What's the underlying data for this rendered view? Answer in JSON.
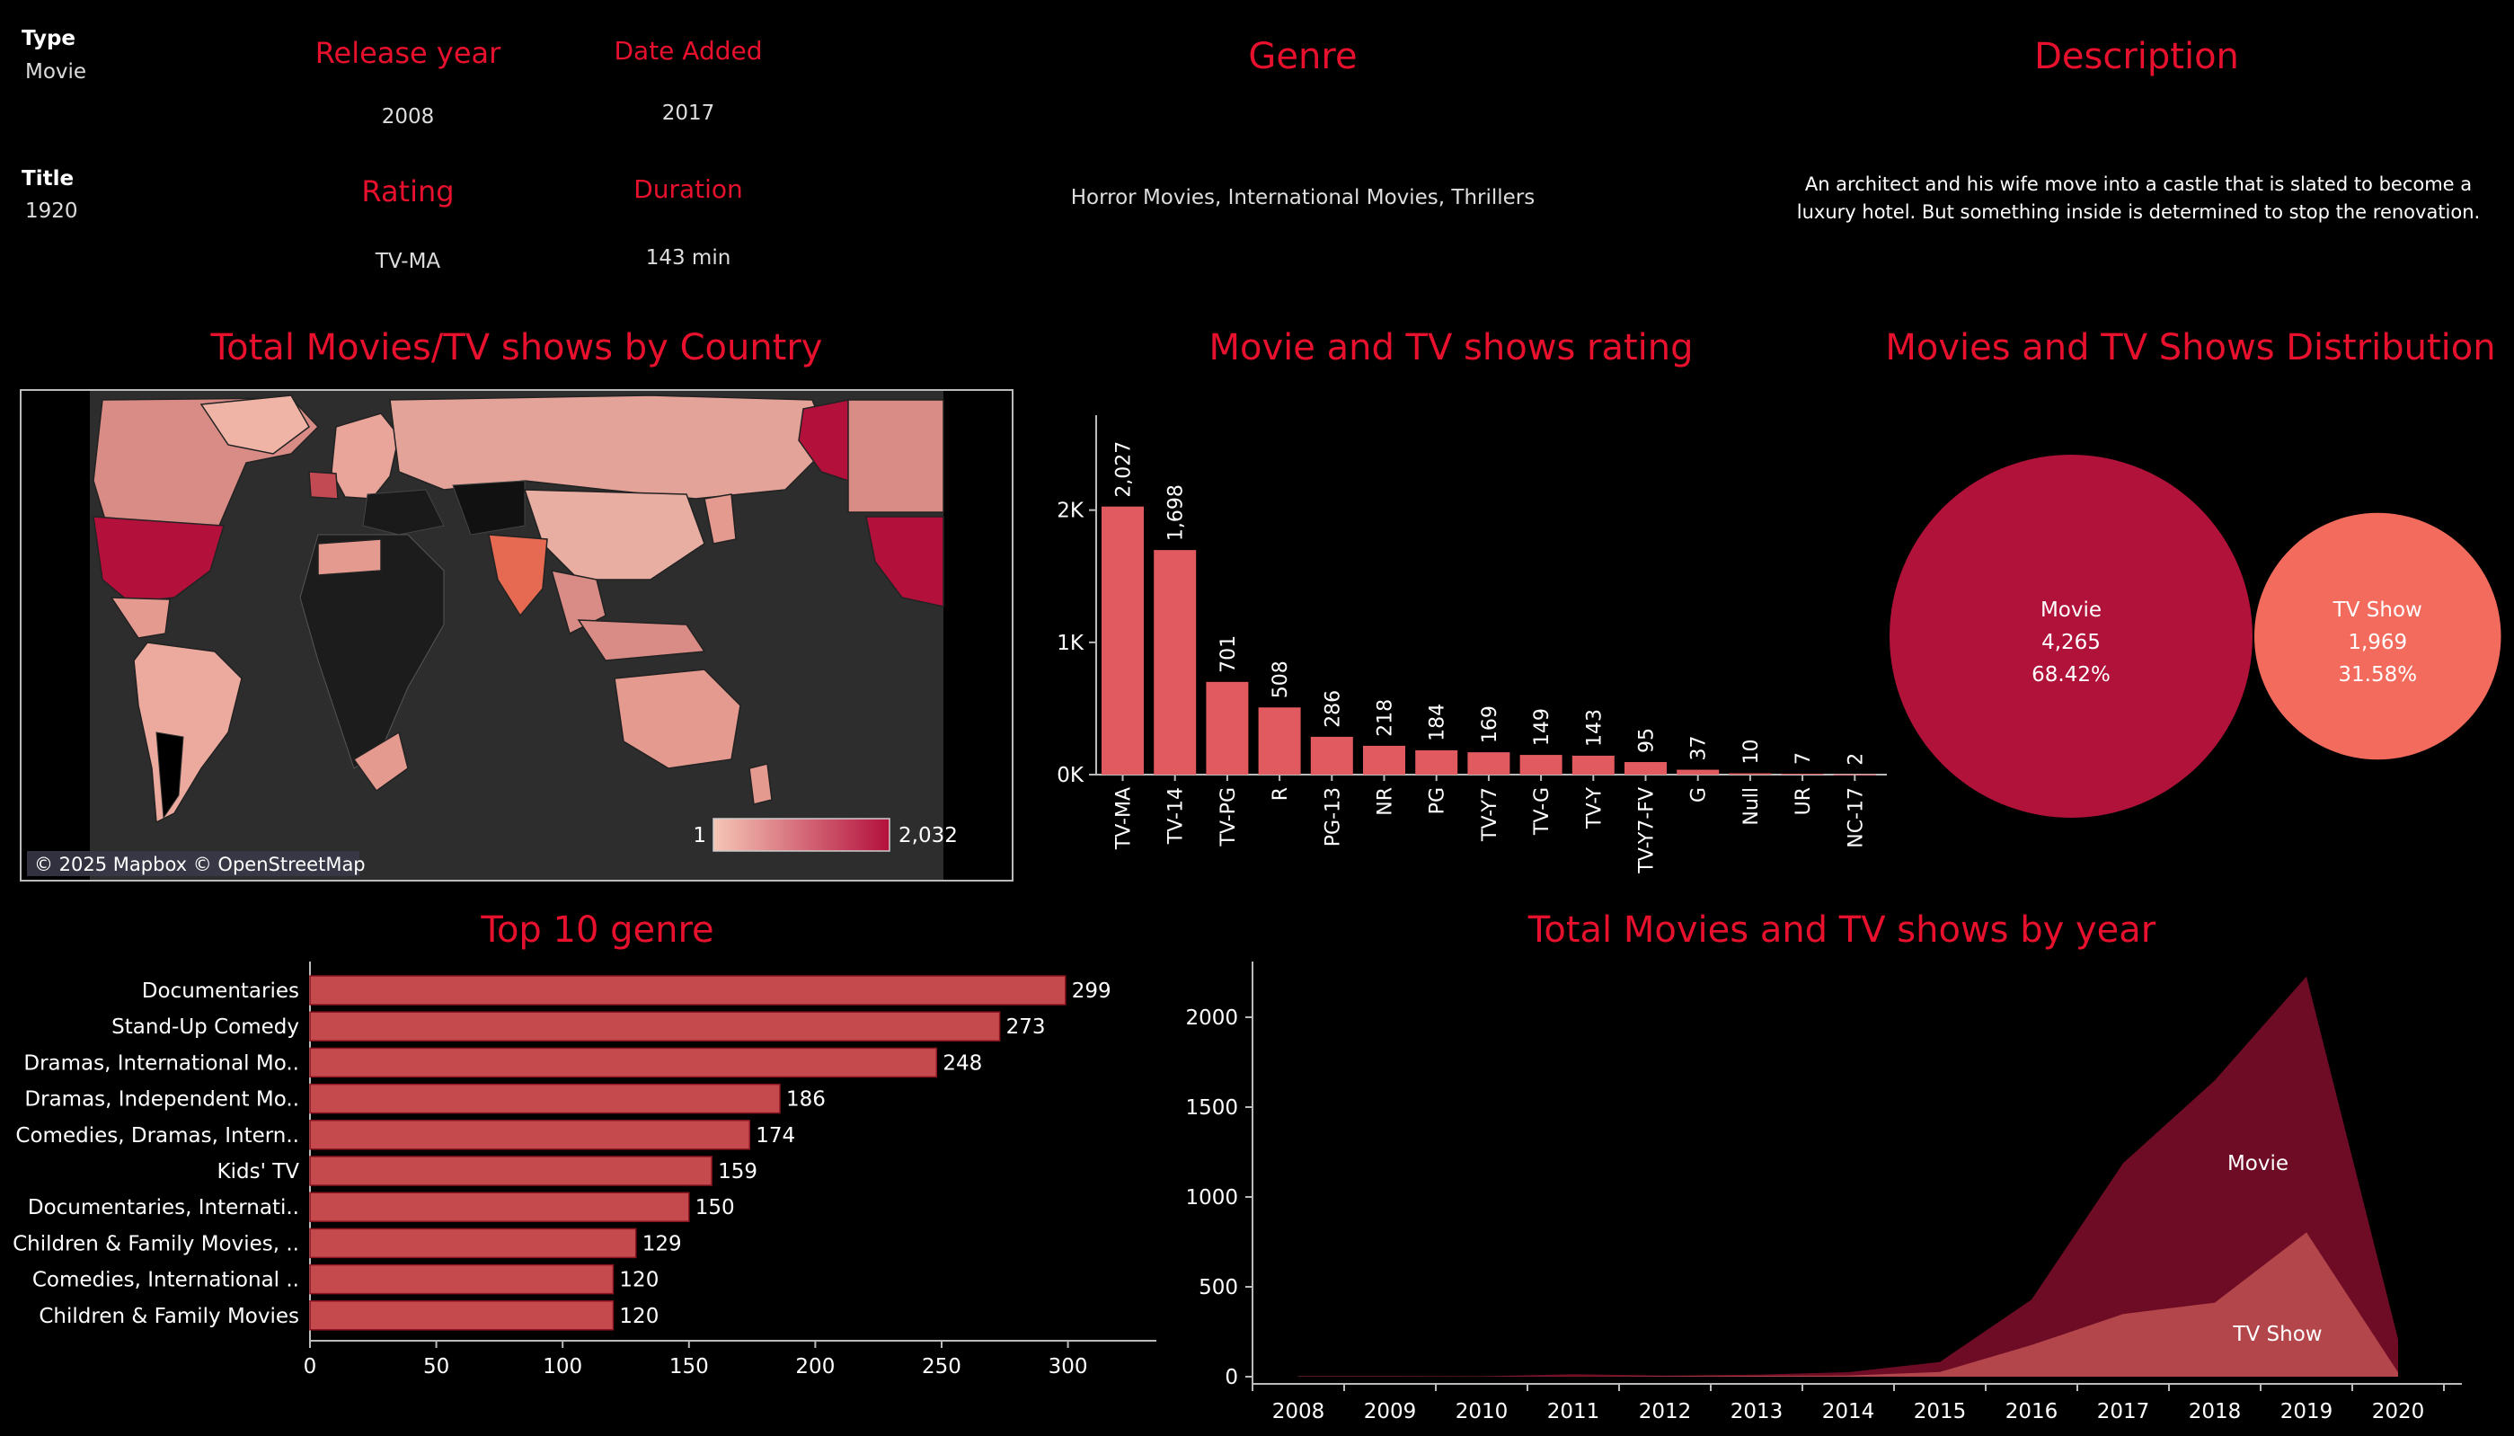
{
  "detail": {
    "type_label": "Type",
    "type_value": "Movie",
    "title_label": "Title",
    "title_value": "1920",
    "release_year_label": "Release year",
    "release_year_value": "2008",
    "date_added_label": "Date Added",
    "date_added_value": "2017",
    "rating_label": "Rating",
    "rating_value": "TV-MA",
    "duration_label": "Duration",
    "duration_value": "143 min",
    "genre_label": "Genre",
    "genre_value": "Horror Movies, International Movies, Thrillers",
    "description_label": "Description",
    "description_line1": "An architect and his wife move into a castle that is slated to become a",
    "description_line2": "luxury hotel. But something inside is determined to stop the renovation."
  },
  "map": {
    "title": "Total Movies/TV shows by Country",
    "legend_min": "1",
    "legend_max": "2,032",
    "attribution": "© 2025 Mapbox © OpenStreetMap",
    "colors": {
      "low": "#f6c6b6",
      "high": "#b3103c",
      "land": "#3a3a3a",
      "ocean": "#2b2b2b"
    }
  },
  "chart_data": [
    {
      "type": "bar",
      "title": "Movie and TV shows rating",
      "categories": [
        "TV-MA",
        "TV-14",
        "TV-PG",
        "R",
        "PG-13",
        "NR",
        "PG",
        "TV-Y7",
        "TV-G",
        "TV-Y",
        "TV-Y7-FV",
        "G",
        "Null",
        "UR",
        "NC-17"
      ],
      "values": [
        2027,
        1698,
        701,
        508,
        286,
        218,
        184,
        169,
        149,
        143,
        95,
        37,
        10,
        7,
        2
      ],
      "value_labels": [
        "2,027",
        "1,698",
        "701",
        "508",
        "286",
        "218",
        "184",
        "169",
        "149",
        "143",
        "95",
        "37",
        "10",
        "7",
        "2"
      ],
      "y_ticks": [
        "0K",
        "1K",
        "2K"
      ],
      "ylim": [
        0,
        2650
      ],
      "color": "#e05a5f",
      "grid": false
    },
    {
      "type": "bubble",
      "title": "Movies and TV Shows Distribution",
      "series": [
        {
          "name": "Movie",
          "value": 4265,
          "value_label": "4,265",
          "pct": "68.42%",
          "color": "#b0123a"
        },
        {
          "name": "TV Show",
          "value": 1969,
          "value_label": "1,969",
          "pct": "31.58%",
          "color": "#f26b5c"
        }
      ]
    },
    {
      "type": "bar",
      "orientation": "horizontal",
      "title": "Top 10 genre",
      "categories": [
        "Documentaries",
        "Stand-Up Comedy",
        "Dramas, International Mo..",
        "Dramas, Independent Mo..",
        "Comedies, Dramas, Intern..",
        "Kids' TV",
        "Documentaries, Internati..",
        "Children & Family Movies, ..",
        "Comedies, International ..",
        "Children & Family Movies"
      ],
      "values": [
        299,
        273,
        248,
        186,
        174,
        159,
        150,
        129,
        120,
        120
      ],
      "x_ticks": [
        0,
        50,
        100,
        150,
        200,
        250,
        300
      ],
      "xlim": [
        0,
        335
      ],
      "color": "#c44a4e",
      "grid": false
    },
    {
      "type": "area",
      "title": "Total Movies and TV shows by year",
      "x": [
        "2008",
        "2009",
        "2010",
        "2011",
        "2012",
        "2013",
        "2014",
        "2015",
        "2016",
        "2017",
        "2018",
        "2019",
        "2020"
      ],
      "series": [
        {
          "name": "Movie",
          "values": [
            2,
            2,
            1,
            13,
            3,
            6,
            19,
            56,
            253,
            839,
            1237,
            1424,
            184
          ],
          "color": "#6e0b25"
        },
        {
          "name": "TV Show",
          "values": [
            1,
            1,
            1,
            1,
            3,
            5,
            6,
            26,
            176,
            349,
            412,
            803,
            24
          ],
          "color": "#b2464b"
        }
      ],
      "stacked": true,
      "y_ticks": [
        0,
        500,
        1000,
        1500,
        2000
      ],
      "ylim": [
        0,
        2450
      ],
      "grid": false
    }
  ]
}
